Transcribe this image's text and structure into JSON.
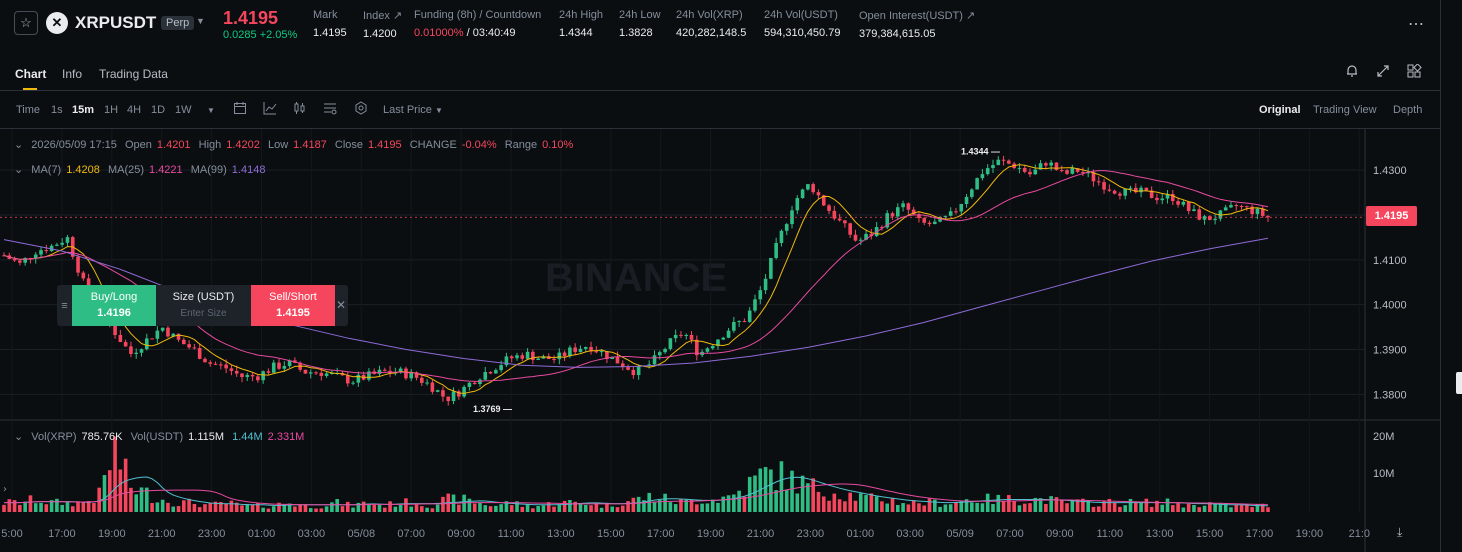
{
  "header": {
    "symbol": "XRPUSDT",
    "badge": "Perp",
    "last_price": "1.4195",
    "change": "0.0285 +2.05%",
    "stats": [
      {
        "label": "Mark",
        "value": "1.4195",
        "red": false
      },
      {
        "label": "Index ↗",
        "value": "1.4200",
        "red": false
      },
      {
        "label": "Funding (8h) / Countdown",
        "value_red": "0.01000%",
        "value": " / 03:40:49",
        "red": true
      },
      {
        "label": "24h High",
        "value": "1.4344",
        "red": false
      },
      {
        "label": "24h Low",
        "value": "1.3828",
        "red": false
      },
      {
        "label": "24h Vol(XRP)",
        "value": "420,282,148.5",
        "red": false
      },
      {
        "label": "24h Vol(USDT)",
        "value": "594,310,450.79",
        "red": false
      },
      {
        "label": "Open Interest(USDT) ↗",
        "value": "379,384,615.05",
        "red": false
      }
    ],
    "more_icon": "more-horizontal-icon"
  },
  "tabs": {
    "items": [
      "Chart",
      "Info",
      "Trading Data"
    ],
    "active": "Chart",
    "icons": [
      "bell-icon",
      "expand-icon",
      "layout-icon"
    ]
  },
  "toolbar": {
    "time_label": "Time",
    "intervals": [
      "1s",
      "15m",
      "1H",
      "4H",
      "1D",
      "1W"
    ],
    "active_interval": "15m",
    "price_type": "Last Price",
    "views": [
      "Original",
      "Trading View",
      "Depth"
    ],
    "active_view": "Original"
  },
  "legend": {
    "date": "2026/05/09 17:15",
    "open_label": "Open",
    "open": "1.4201",
    "high_label": "High",
    "high": "1.4202",
    "low_label": "Low",
    "low": "1.4187",
    "close_label": "Close",
    "close": "1.4195",
    "change_label": "CHANGE",
    "change": "-0.04%",
    "range_label": "Range",
    "range": "0.10%",
    "ma7_label": "MA(7)",
    "ma7": "1.4208",
    "ma25_label": "MA(25)",
    "ma25": "1.4221",
    "ma99_label": "MA(99)",
    "ma99": "1.4148",
    "volx_label": "Vol(XRP)",
    "volx": "785.76K",
    "volu_label": "Vol(USDT)",
    "volu": "1.115M",
    "volma1": "1.44M",
    "volma2": "2.331M"
  },
  "order_widget": {
    "buy_label": "Buy/Long",
    "buy_price": "1.4196",
    "size_label": "Size (USDT)",
    "size_placeholder": "Enter Size",
    "sell_label": "Sell/Short",
    "sell_price": "1.4195",
    "close_icon": "close-icon"
  },
  "watermark": "BINANCE",
  "colors": {
    "up": "#2ebd85",
    "down": "#f6465d",
    "ma7": "#f0b90b",
    "ma25": "#e84aa0",
    "ma99": "#8e6bd8",
    "bg": "#0b0e11"
  },
  "chart_data": {
    "type": "candlestick",
    "interval": "15m",
    "price_axis": [
      "1.4300",
      "1.4200",
      "1.4100",
      "1.4000",
      "1.3900",
      "1.3800"
    ],
    "price_range": [
      1.3745,
      1.4365
    ],
    "current_price": "1.4195",
    "high_marker": "1.4344",
    "low_marker": "1.3769",
    "volume_axis": [
      "20M",
      "10M"
    ],
    "time_axis": [
      "5:00",
      "17:00",
      "19:00",
      "21:00",
      "23:00",
      "01:00",
      "03:00",
      "05/08",
      "07:00",
      "09:00",
      "11:00",
      "13:00",
      "15:00",
      "17:00",
      "19:00",
      "21:00",
      "23:00",
      "01:00",
      "03:00",
      "05/09",
      "07:00",
      "09:00",
      "11:00",
      "13:00",
      "15:00",
      "17:00",
      "19:00",
      "21:0"
    ],
    "close_path": [
      1.411,
      1.409,
      1.412,
      1.413,
      1.415,
      1.405,
      1.398,
      1.394,
      1.389,
      1.392,
      1.395,
      1.392,
      1.39,
      1.387,
      1.386,
      1.384,
      1.384,
      1.386,
      1.387,
      1.385,
      1.385,
      1.384,
      1.383,
      1.384,
      1.385,
      1.385,
      1.384,
      1.382,
      1.379,
      1.381,
      1.384,
      1.386,
      1.388,
      1.389,
      1.388,
      1.388,
      1.39,
      1.391,
      1.389,
      1.387,
      1.385,
      1.387,
      1.391,
      1.394,
      1.389,
      1.392,
      1.395,
      1.397,
      1.404,
      1.414,
      1.423,
      1.427,
      1.422,
      1.418,
      1.414,
      1.416,
      1.42,
      1.422,
      1.418,
      1.418,
      1.42,
      1.425,
      1.43,
      1.432,
      1.431,
      1.429,
      1.432,
      1.429,
      1.43,
      1.428,
      1.426,
      1.425,
      1.425,
      1.424,
      1.424,
      1.421,
      1.419,
      1.42,
      1.422,
      1.421,
      1.4195
    ],
    "volume_profile": [
      3,
      3,
      4,
      3,
      3,
      3,
      5,
      20,
      8,
      6,
      4,
      3,
      3,
      2,
      3,
      2,
      2,
      2,
      3,
      2,
      2,
      3,
      2,
      3,
      2,
      3,
      3,
      2,
      4,
      4,
      3,
      2,
      3,
      2,
      2,
      3,
      3,
      3,
      2,
      3,
      4,
      5,
      4,
      3,
      4,
      4,
      5,
      8,
      12,
      12,
      10,
      8,
      7,
      6,
      5,
      4,
      4,
      3,
      3,
      3,
      3,
      4,
      4,
      4,
      4,
      4,
      4,
      3,
      3,
      3,
      3,
      3,
      3,
      3,
      3,
      2,
      3,
      2,
      2,
      2,
      2
    ]
  }
}
